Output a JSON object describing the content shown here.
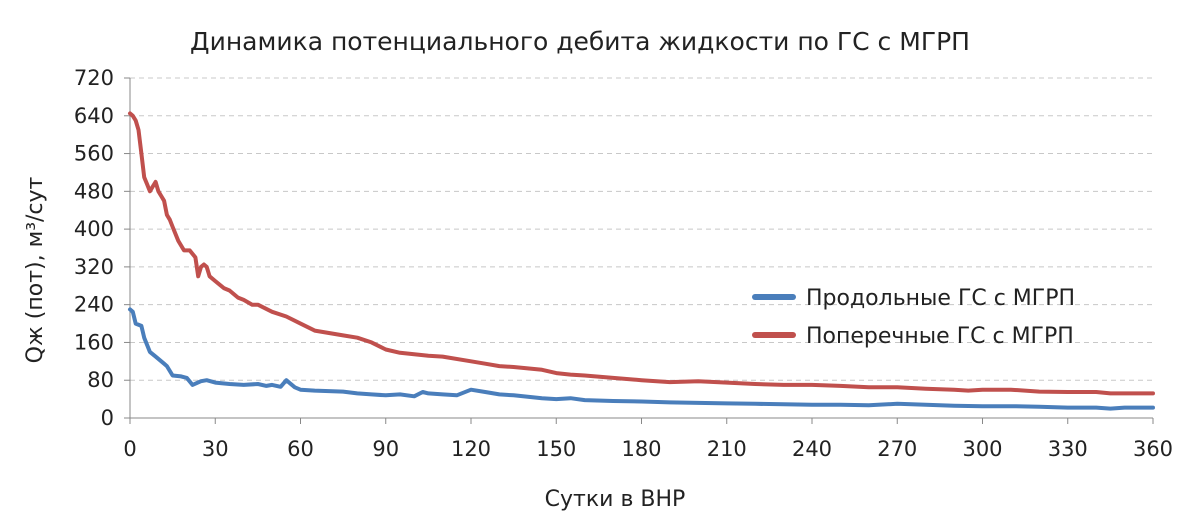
{
  "chart_data": {
    "type": "line",
    "title": "Динамика потенциального дебита жидкости по ГС с МГРП",
    "xlabel": "Сутки в ВНР",
    "ylabel": "Qж (пот), м³/сут",
    "xlim": [
      0,
      360
    ],
    "ylim": [
      0,
      720
    ],
    "x_ticks": [
      "0",
      "30",
      "60",
      "90",
      "120",
      "150",
      "180",
      "210",
      "240",
      "270",
      "300",
      "330",
      "360"
    ],
    "y_ticks": [
      "0",
      "80",
      "160",
      "240",
      "320",
      "400",
      "480",
      "560",
      "640",
      "720"
    ],
    "grid": "horizontal dashed",
    "legend_position": "right",
    "series": [
      {
        "name": "Продольные ГС с МГРП",
        "color": "#4a7ebb",
        "x": [
          0,
          1,
          2,
          4,
          5,
          7,
          9,
          12,
          13,
          15,
          18,
          20,
          22,
          25,
          27,
          30,
          35,
          40,
          45,
          48,
          50,
          53,
          55,
          58,
          60,
          65,
          70,
          75,
          80,
          85,
          90,
          95,
          100,
          103,
          105,
          110,
          115,
          120,
          125,
          130,
          135,
          140,
          145,
          150,
          155,
          160,
          170,
          180,
          190,
          200,
          210,
          220,
          230,
          240,
          250,
          260,
          270,
          280,
          290,
          300,
          310,
          320,
          330,
          340,
          345,
          350,
          360
        ],
        "y": [
          230,
          225,
          200,
          195,
          170,
          140,
          130,
          115,
          110,
          90,
          88,
          85,
          70,
          78,
          80,
          75,
          72,
          70,
          72,
          68,
          70,
          66,
          80,
          65,
          60,
          58,
          57,
          56,
          52,
          50,
          48,
          50,
          46,
          55,
          52,
          50,
          48,
          60,
          55,
          50,
          48,
          45,
          42,
          40,
          42,
          38,
          36,
          35,
          33,
          32,
          31,
          30,
          29,
          28,
          28,
          27,
          30,
          28,
          26,
          25,
          25,
          24,
          22,
          22,
          20,
          22,
          22
        ]
      },
      {
        "name": "Поперечные ГС с МГРП",
        "color": "#c0504d",
        "x": [
          0,
          1,
          2,
          3,
          4,
          5,
          6,
          7,
          8,
          9,
          10,
          11,
          12,
          13,
          14,
          15,
          17,
          19,
          21,
          23,
          24,
          25,
          26,
          27,
          28,
          30,
          33,
          35,
          38,
          40,
          43,
          45,
          50,
          55,
          60,
          65,
          70,
          75,
          80,
          85,
          90,
          95,
          100,
          105,
          110,
          120,
          125,
          130,
          135,
          140,
          145,
          150,
          155,
          160,
          170,
          180,
          190,
          200,
          210,
          220,
          230,
          240,
          250,
          260,
          270,
          280,
          290,
          295,
          300,
          310,
          320,
          330,
          340,
          345,
          350,
          360
        ],
        "y": [
          645,
          640,
          630,
          610,
          560,
          510,
          495,
          480,
          490,
          500,
          480,
          470,
          460,
          430,
          420,
          405,
          375,
          355,
          355,
          340,
          300,
          320,
          325,
          320,
          300,
          290,
          275,
          270,
          255,
          250,
          240,
          240,
          225,
          215,
          200,
          185,
          180,
          175,
          170,
          160,
          145,
          138,
          135,
          132,
          130,
          120,
          115,
          110,
          108,
          105,
          102,
          95,
          92,
          90,
          85,
          80,
          76,
          78,
          75,
          72,
          70,
          70,
          68,
          65,
          65,
          62,
          60,
          58,
          60,
          60,
          56,
          55,
          55,
          52,
          52,
          52
        ]
      }
    ]
  }
}
